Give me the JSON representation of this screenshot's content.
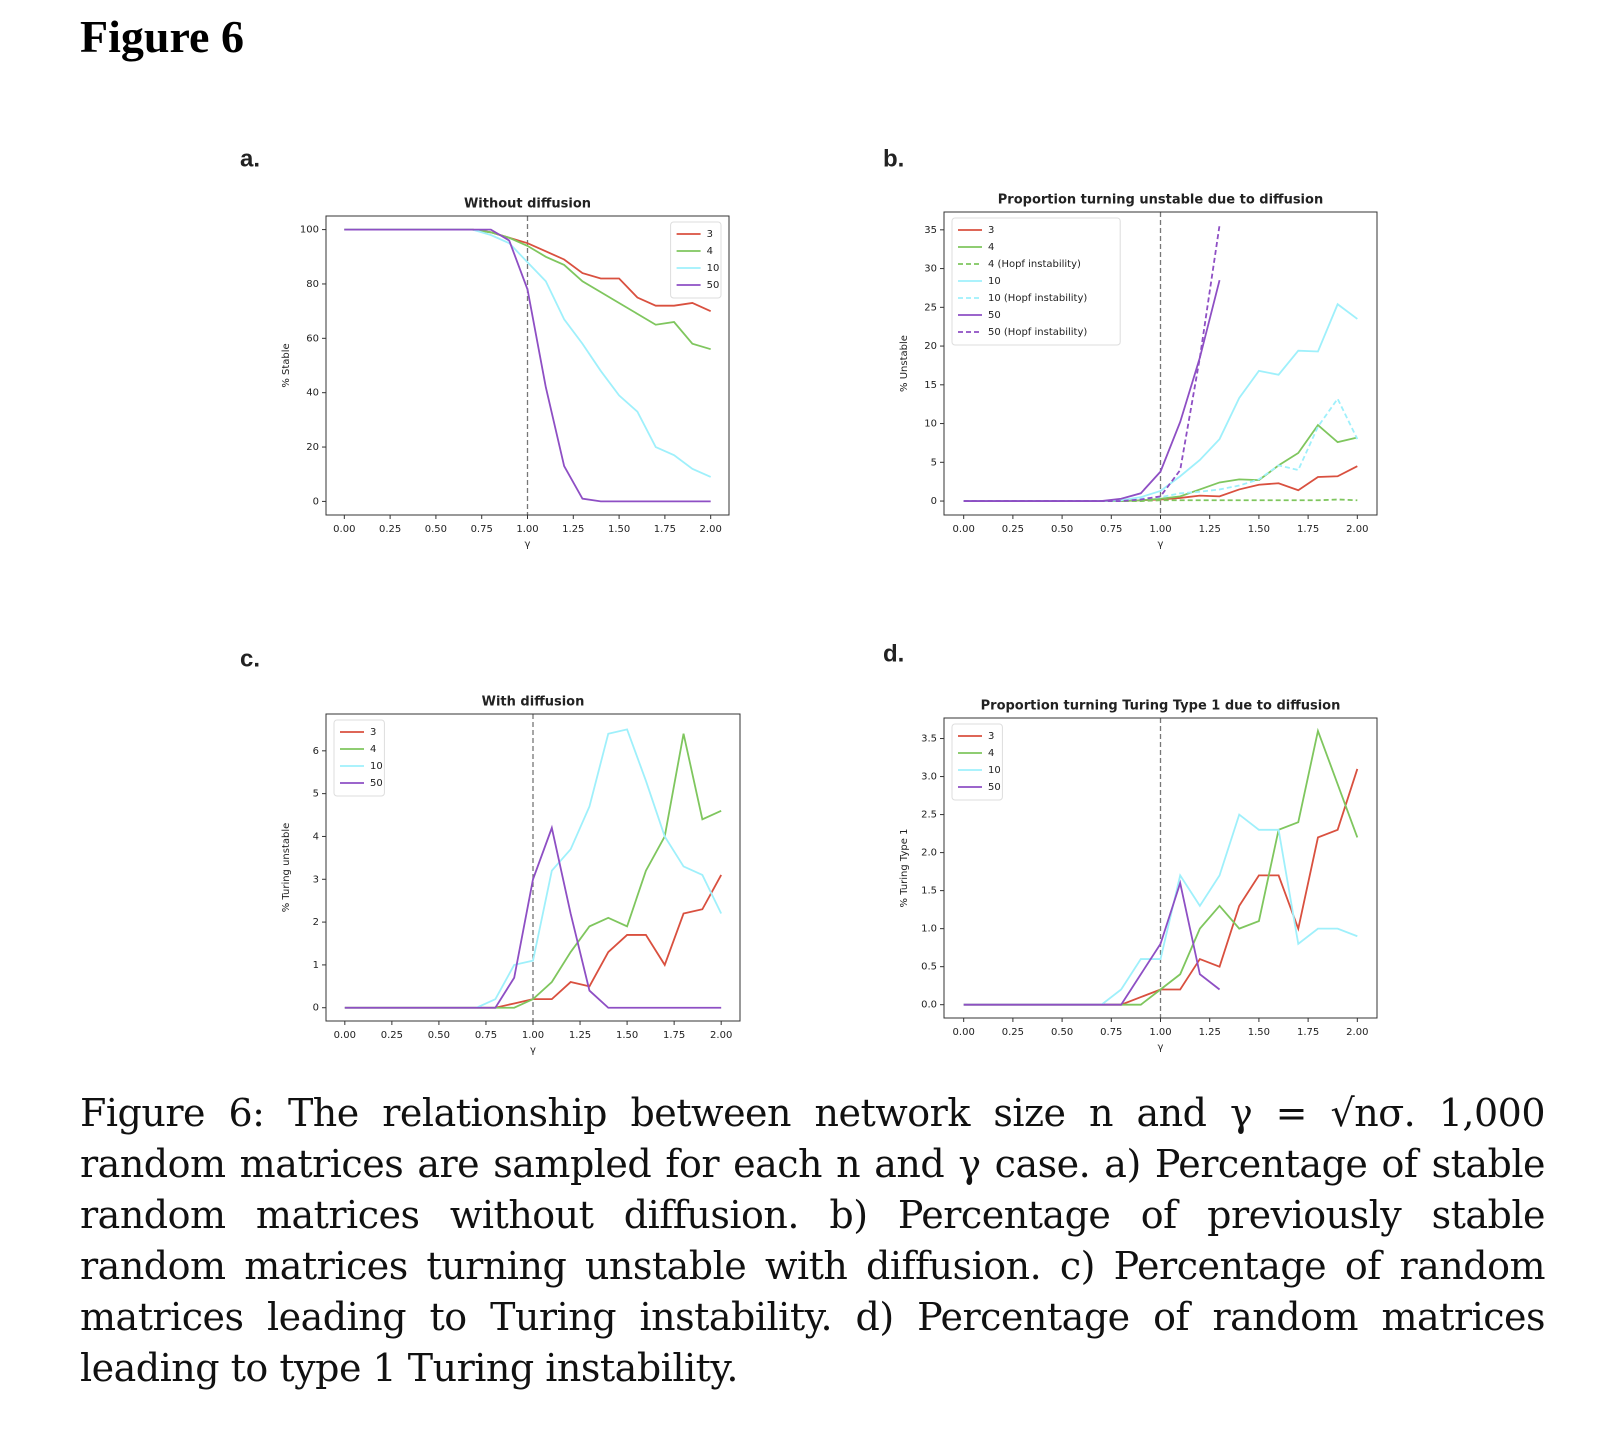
{
  "figure_title": "Figure 6",
  "panel_labels": [
    "a.",
    "b.",
    "c.",
    "d."
  ],
  "caption": "Figure 6: The relationship between network size n and γ = √nσ. 1,000 random matrices are sampled for each n and γ case. a) Percentage of stable random matrices without diffusion. b) Percentage of previously stable random matrices turning unstable with diffusion. c) Percentage of random matrices leading to Turing instability. d) Percentage of random matrices leading to type 1 Turing instability.",
  "chart_data": [
    {
      "type": "line",
      "title": "Without diffusion",
      "x_label": "γ",
      "y_label": "% Stable",
      "legend": "upper right",
      "vline": 1,
      "x": [
        0,
        0.1,
        0.2,
        0.3,
        0.4,
        0.5,
        0.6,
        0.7,
        0.8,
        0.9,
        1.0,
        1.1,
        1.2,
        1.3,
        1.4,
        1.5,
        1.6,
        1.7,
        1.8,
        1.9,
        2.0
      ],
      "xlim": [
        -0.1,
        2.1
      ],
      "xticks": [
        {
          "value": 0,
          "label": "0.00"
        },
        {
          "value": 0.25,
          "label": "0.25"
        },
        {
          "value": 0.5,
          "label": "0.50"
        },
        {
          "value": 0.75,
          "label": "0.75"
        },
        {
          "value": 1,
          "label": "1.00"
        },
        {
          "value": 1.25,
          "label": "1.25"
        },
        {
          "value": 1.5,
          "label": "1.50"
        },
        {
          "value": 1.75,
          "label": "1.75"
        },
        {
          "value": 2,
          "label": "2.00"
        }
      ],
      "ylim": [
        -5,
        105
      ],
      "yticks": [
        0,
        20,
        40,
        60,
        80,
        100
      ],
      "series": [
        {
          "name": "3",
          "color": "#d9503f",
          "values": [
            100,
            100,
            100,
            100,
            100,
            100,
            100,
            100,
            99,
            97,
            95,
            92,
            89,
            84,
            82,
            82,
            75,
            72,
            72,
            73,
            70
          ]
        },
        {
          "name": "4",
          "color": "#7fc65e",
          "values": [
            100,
            100,
            100,
            100,
            100,
            100,
            100,
            100,
            99,
            97,
            94,
            90,
            87,
            81,
            77,
            73,
            69,
            65,
            66,
            58,
            56
          ]
        },
        {
          "name": "10",
          "color": "#9ff0fb",
          "values": [
            100,
            100,
            100,
            100,
            100,
            100,
            100,
            100,
            98,
            95,
            88,
            81,
            67,
            58,
            48,
            39,
            33,
            20,
            17,
            12,
            9
          ]
        },
        {
          "name": "50",
          "color": "#8e4fc4",
          "values": [
            100,
            100,
            100,
            100,
            100,
            100,
            100,
            100,
            100,
            96,
            78,
            42,
            13,
            1,
            0,
            0,
            0,
            0,
            0,
            0,
            0
          ]
        }
      ]
    },
    {
      "type": "line",
      "title": "Proportion turning unstable due to diffusion",
      "x_label": "γ",
      "y_label": "% Unstable",
      "legend": "upper left",
      "vline": 1,
      "x": [
        0,
        0.1,
        0.2,
        0.3,
        0.4,
        0.5,
        0.6,
        0.7,
        0.8,
        0.9,
        1.0,
        1.1,
        1.2,
        1.3,
        1.4,
        1.5,
        1.6,
        1.7,
        1.8,
        1.9,
        2.0
      ],
      "xlim": [
        -0.1,
        2.1
      ],
      "xticks": [
        {
          "value": 0,
          "label": "0.00"
        },
        {
          "value": 0.25,
          "label": "0.25"
        },
        {
          "value": 0.5,
          "label": "0.50"
        },
        {
          "value": 0.75,
          "label": "0.75"
        },
        {
          "value": 1,
          "label": "1.00"
        },
        {
          "value": 1.25,
          "label": "1.25"
        },
        {
          "value": 1.5,
          "label": "1.50"
        },
        {
          "value": 1.75,
          "label": "1.75"
        },
        {
          "value": 2,
          "label": "2.00"
        }
      ],
      "ylim": [
        -1.8,
        37.3
      ],
      "yticks": [
        0,
        5,
        10,
        15,
        20,
        25,
        30,
        35
      ],
      "series": [
        {
          "name": "3",
          "color": "#d9503f",
          "linestyle": "solid",
          "values": [
            0,
            0,
            0,
            0,
            0,
            0,
            0,
            0,
            0,
            0.1,
            0.2,
            0.4,
            0.7,
            0.6,
            1.5,
            2.1,
            2.3,
            1.4,
            3.1,
            3.2,
            4.5
          ]
        },
        {
          "name": "4",
          "color": "#7fc65e",
          "linestyle": "solid",
          "values": [
            0,
            0,
            0,
            0,
            0,
            0,
            0,
            0,
            0,
            0.1,
            0.3,
            0.6,
            1.5,
            2.4,
            2.8,
            2.7,
            4.6,
            6.2,
            9.8,
            7.6,
            8.2
          ]
        },
        {
          "name": "4 (Hopf instability)",
          "color": "#7fc65e",
          "linestyle": "dashed",
          "values": [
            0,
            0,
            0,
            0,
            0,
            0,
            0,
            0,
            0,
            0,
            0.1,
            0.1,
            0.1,
            0.1,
            0.1,
            0.1,
            0.1,
            0.1,
            0.1,
            0.2,
            0.1
          ]
        },
        {
          "name": "10",
          "color": "#9ff0fb",
          "linestyle": "solid",
          "values": [
            0,
            0,
            0,
            0,
            0,
            0,
            0,
            0,
            0.1,
            0.5,
            1.3,
            3.2,
            5.3,
            8,
            13.3,
            16.8,
            16.3,
            19.4,
            19.3,
            25.4,
            23.5
          ]
        },
        {
          "name": "10 (Hopf instability)",
          "color": "#9ff0fb",
          "linestyle": "dashed",
          "values": [
            0,
            0,
            0,
            0,
            0,
            0,
            0,
            0,
            0,
            0.3,
            0.5,
            1.0,
            1.2,
            1.5,
            2.0,
            2.8,
            4.6,
            4.0,
            9.6,
            13.2,
            8.0
          ]
        },
        {
          "name": "50",
          "color": "#8e4fc4",
          "linestyle": "solid",
          "values": [
            0,
            0,
            0,
            0,
            0,
            0,
            0,
            0,
            0.3,
            1,
            3.8,
            10.2,
            18.5,
            28.5,
            null,
            null,
            null,
            null,
            null,
            null,
            null
          ]
        },
        {
          "name": "50 (Hopf instability)",
          "color": "#8e4fc4",
          "linestyle": "dashed",
          "values": [
            0,
            0,
            0,
            0,
            0,
            0,
            0,
            0,
            0,
            0.2,
            0.6,
            4,
            18.5,
            35.6,
            null,
            null,
            null,
            null,
            null,
            null,
            null
          ]
        }
      ]
    },
    {
      "type": "line",
      "title": "With diffusion",
      "x_label": "γ",
      "y_label": "% Turing unstable",
      "legend": "upper left",
      "vline": 1,
      "x": [
        0,
        0.1,
        0.2,
        0.3,
        0.4,
        0.5,
        0.6,
        0.7,
        0.8,
        0.9,
        1.0,
        1.1,
        1.2,
        1.3,
        1.4,
        1.5,
        1.6,
        1.7,
        1.8,
        1.9,
        2.0
      ],
      "xlim": [
        -0.1,
        2.1
      ],
      "xticks": [
        {
          "value": 0,
          "label": "0.00"
        },
        {
          "value": 0.25,
          "label": "0.25"
        },
        {
          "value": 0.5,
          "label": "0.50"
        },
        {
          "value": 0.75,
          "label": "0.75"
        },
        {
          "value": 1,
          "label": "1.00"
        },
        {
          "value": 1.25,
          "label": "1.25"
        },
        {
          "value": 1.5,
          "label": "1.50"
        },
        {
          "value": 1.75,
          "label": "1.75"
        },
        {
          "value": 2,
          "label": "2.00"
        }
      ],
      "ylim": [
        -0.31,
        6.86
      ],
      "yticks": [
        0,
        1,
        2,
        3,
        4,
        5,
        6
      ],
      "series": [
        {
          "name": "3",
          "color": "#d9503f",
          "values": [
            0,
            0,
            0,
            0,
            0,
            0,
            0,
            0,
            0,
            0.1,
            0.2,
            0.2,
            0.6,
            0.5,
            1.3,
            1.7,
            1.7,
            1.0,
            2.2,
            2.3,
            3.1
          ]
        },
        {
          "name": "4",
          "color": "#7fc65e",
          "values": [
            0,
            0,
            0,
            0,
            0,
            0,
            0,
            0,
            0,
            0,
            0.2,
            0.6,
            1.3,
            1.9,
            2.1,
            1.9,
            3.2,
            4.0,
            6.4,
            4.4,
            4.6
          ]
        },
        {
          "name": "10",
          "color": "#9ff0fb",
          "values": [
            0,
            0,
            0,
            0,
            0,
            0,
            0,
            0,
            0.2,
            1.0,
            1.1,
            3.2,
            3.7,
            4.7,
            6.4,
            6.5,
            5.3,
            4.0,
            3.3,
            3.1,
            2.2
          ]
        },
        {
          "name": "50",
          "color": "#8e4fc4",
          "values": [
            0,
            0,
            0,
            0,
            0,
            0,
            0,
            0,
            0,
            0.7,
            3.0,
            4.2,
            2.2,
            0.4,
            0,
            0,
            0,
            0,
            0,
            0,
            0
          ]
        }
      ]
    },
    {
      "type": "line",
      "title": "Proportion turning Turing Type 1 due to diffusion",
      "x_label": "γ",
      "y_label": "% Turing Type 1",
      "legend": "upper left",
      "vline": 1,
      "x": [
        0,
        0.1,
        0.2,
        0.3,
        0.4,
        0.5,
        0.6,
        0.7,
        0.8,
        0.9,
        1.0,
        1.1,
        1.2,
        1.3,
        1.4,
        1.5,
        1.6,
        1.7,
        1.8,
        1.9,
        2.0
      ],
      "xlim": [
        -0.1,
        2.1
      ],
      "xticks": [
        {
          "value": 0,
          "label": "0.00"
        },
        {
          "value": 0.25,
          "label": "0.25"
        },
        {
          "value": 0.5,
          "label": "0.50"
        },
        {
          "value": 0.75,
          "label": "0.75"
        },
        {
          "value": 1,
          "label": "1.00"
        },
        {
          "value": 1.25,
          "label": "1.25"
        },
        {
          "value": 1.5,
          "label": "1.50"
        },
        {
          "value": 1.75,
          "label": "1.75"
        },
        {
          "value": 2,
          "label": "2.00"
        }
      ],
      "ylim": [
        -0.175,
        3.77
      ],
      "yticks": [
        {
          "value": 0,
          "label": "0.0"
        },
        {
          "value": 0.5,
          "label": "0.5"
        },
        {
          "value": 1,
          "label": "1.0"
        },
        {
          "value": 1.5,
          "label": "1.5"
        },
        {
          "value": 2,
          "label": "2.0"
        },
        {
          "value": 2.5,
          "label": "2.5"
        },
        {
          "value": 3,
          "label": "3.0"
        },
        {
          "value": 3.5,
          "label": "3.5"
        }
      ],
      "series": [
        {
          "name": "3",
          "color": "#d9503f",
          "values": [
            0,
            0,
            0,
            0,
            0,
            0,
            0,
            0,
            0,
            0.1,
            0.2,
            0.2,
            0.6,
            0.5,
            1.3,
            1.7,
            1.7,
            1.0,
            2.2,
            2.3,
            3.1
          ]
        },
        {
          "name": "4",
          "color": "#7fc65e",
          "values": [
            0,
            0,
            0,
            0,
            0,
            0,
            0,
            0,
            0,
            0,
            0.2,
            0.4,
            1.0,
            1.3,
            1.0,
            1.1,
            2.3,
            2.4,
            3.6,
            2.9,
            2.2
          ]
        },
        {
          "name": "10",
          "color": "#9ff0fb",
          "values": [
            0,
            0,
            0,
            0,
            0,
            0,
            0,
            0,
            0.2,
            0.6,
            0.6,
            1.7,
            1.3,
            1.7,
            2.5,
            2.3,
            2.3,
            0.8,
            1.0,
            1.0,
            0.9
          ]
        },
        {
          "name": "50",
          "color": "#8e4fc4",
          "values": [
            0,
            0,
            0,
            0,
            0,
            0,
            0,
            0,
            0,
            0.4,
            0.8,
            1.6,
            0.4,
            0.2,
            null,
            null,
            null,
            null,
            null,
            null,
            null
          ]
        }
      ]
    }
  ]
}
